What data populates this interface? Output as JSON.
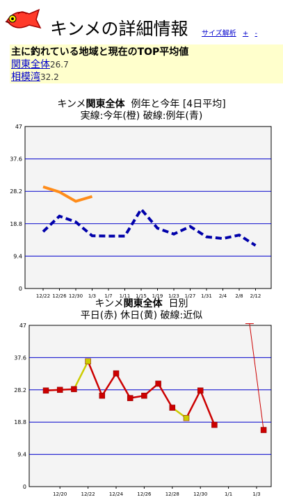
{
  "header": {
    "title": "キンメの詳細情報",
    "link_analysis": "サイズ解析",
    "zoom_in": "+",
    "zoom_out": "-"
  },
  "summary": {
    "heading": "主に釣れている地域と現在のTOP平均値",
    "rows": [
      {
        "area": "関東全体",
        "value": "26.7"
      },
      {
        "area": "相模湾",
        "value": "32.2"
      }
    ]
  },
  "chart1": {
    "title_prefix": "キンメ",
    "title_area": "関東全体",
    "title_suffix": "例年と今年 [4日平均]",
    "subtitle": "実線:今年(橙)  破線:例年(青)"
  },
  "chart2": {
    "title_prefix": "キンメ",
    "title_area": "関東全体",
    "title_suffix": "日別",
    "subtitle": "平日(赤)  休日(黄)  破線:近似"
  },
  "colors": {
    "this_year": "#ff8c1a",
    "average_year": "#0000aa",
    "weekday": "#cc0000",
    "holiday": "#cccc00",
    "grid": "#0000cc",
    "plot_bg": "#f4f4f4"
  },
  "chart_data": [
    {
      "type": "line",
      "ylim": [
        0,
        47
      ],
      "yticks": [
        "0",
        "9.4",
        "18.8",
        "28.2",
        "37.6",
        "47"
      ],
      "categories": [
        "12/22",
        "12/26",
        "12/30",
        "1/3",
        "1/7",
        "1/11",
        "1/15",
        "1/19",
        "1/23",
        "1/27",
        "1/31",
        "2/4",
        "2/8",
        "2/12"
      ],
      "series": [
        {
          "values": [
            29.5,
            28.0,
            25.3,
            26.7,
            null,
            null,
            null,
            null,
            null,
            null,
            null,
            null,
            null,
            null
          ]
        },
        {
          "values": [
            16.5,
            21.0,
            19.3,
            15.3,
            15.2,
            15.2,
            23.0,
            17.5,
            15.8,
            18.0,
            15.0,
            14.5,
            15.5,
            12.5
          ]
        }
      ]
    },
    {
      "type": "line",
      "ylim": [
        0,
        47
      ],
      "yticks": [
        "0",
        "9.4",
        "18.8",
        "28.2",
        "37.6",
        "47"
      ],
      "categories": [
        "12/20",
        "12/22",
        "12/24",
        "12/26",
        "12/28",
        "12/30",
        "1/1",
        "1/3"
      ],
      "points": [
        {
          "x": 0,
          "y": 28.0,
          "day": "weekday"
        },
        {
          "x": 1,
          "y": 28.2,
          "day": "weekday"
        },
        {
          "x": 2,
          "y": 28.4,
          "day": "weekday"
        },
        {
          "x": 3,
          "y": 36.5,
          "day": "holiday"
        },
        {
          "x": 4,
          "y": 26.5,
          "day": "weekday"
        },
        {
          "x": 5,
          "y": 33.0,
          "day": "weekday"
        },
        {
          "x": 6,
          "y": 25.8,
          "day": "weekday"
        },
        {
          "x": 7,
          "y": 26.5,
          "day": "weekday"
        },
        {
          "x": 8,
          "y": 30.0,
          "day": "weekday"
        },
        {
          "x": 9,
          "y": 23.0,
          "day": "weekday"
        },
        {
          "x": 10,
          "y": 20.0,
          "day": "holiday"
        },
        {
          "x": 11,
          "y": 28.0,
          "day": "weekday"
        },
        {
          "x": 12,
          "y": 18.0,
          "day": "weekday"
        },
        {
          "x": 14.5,
          "y": 47.5,
          "day": "trend"
        },
        {
          "x": 15.5,
          "y": 16.5,
          "day": "weekday"
        }
      ]
    }
  ]
}
